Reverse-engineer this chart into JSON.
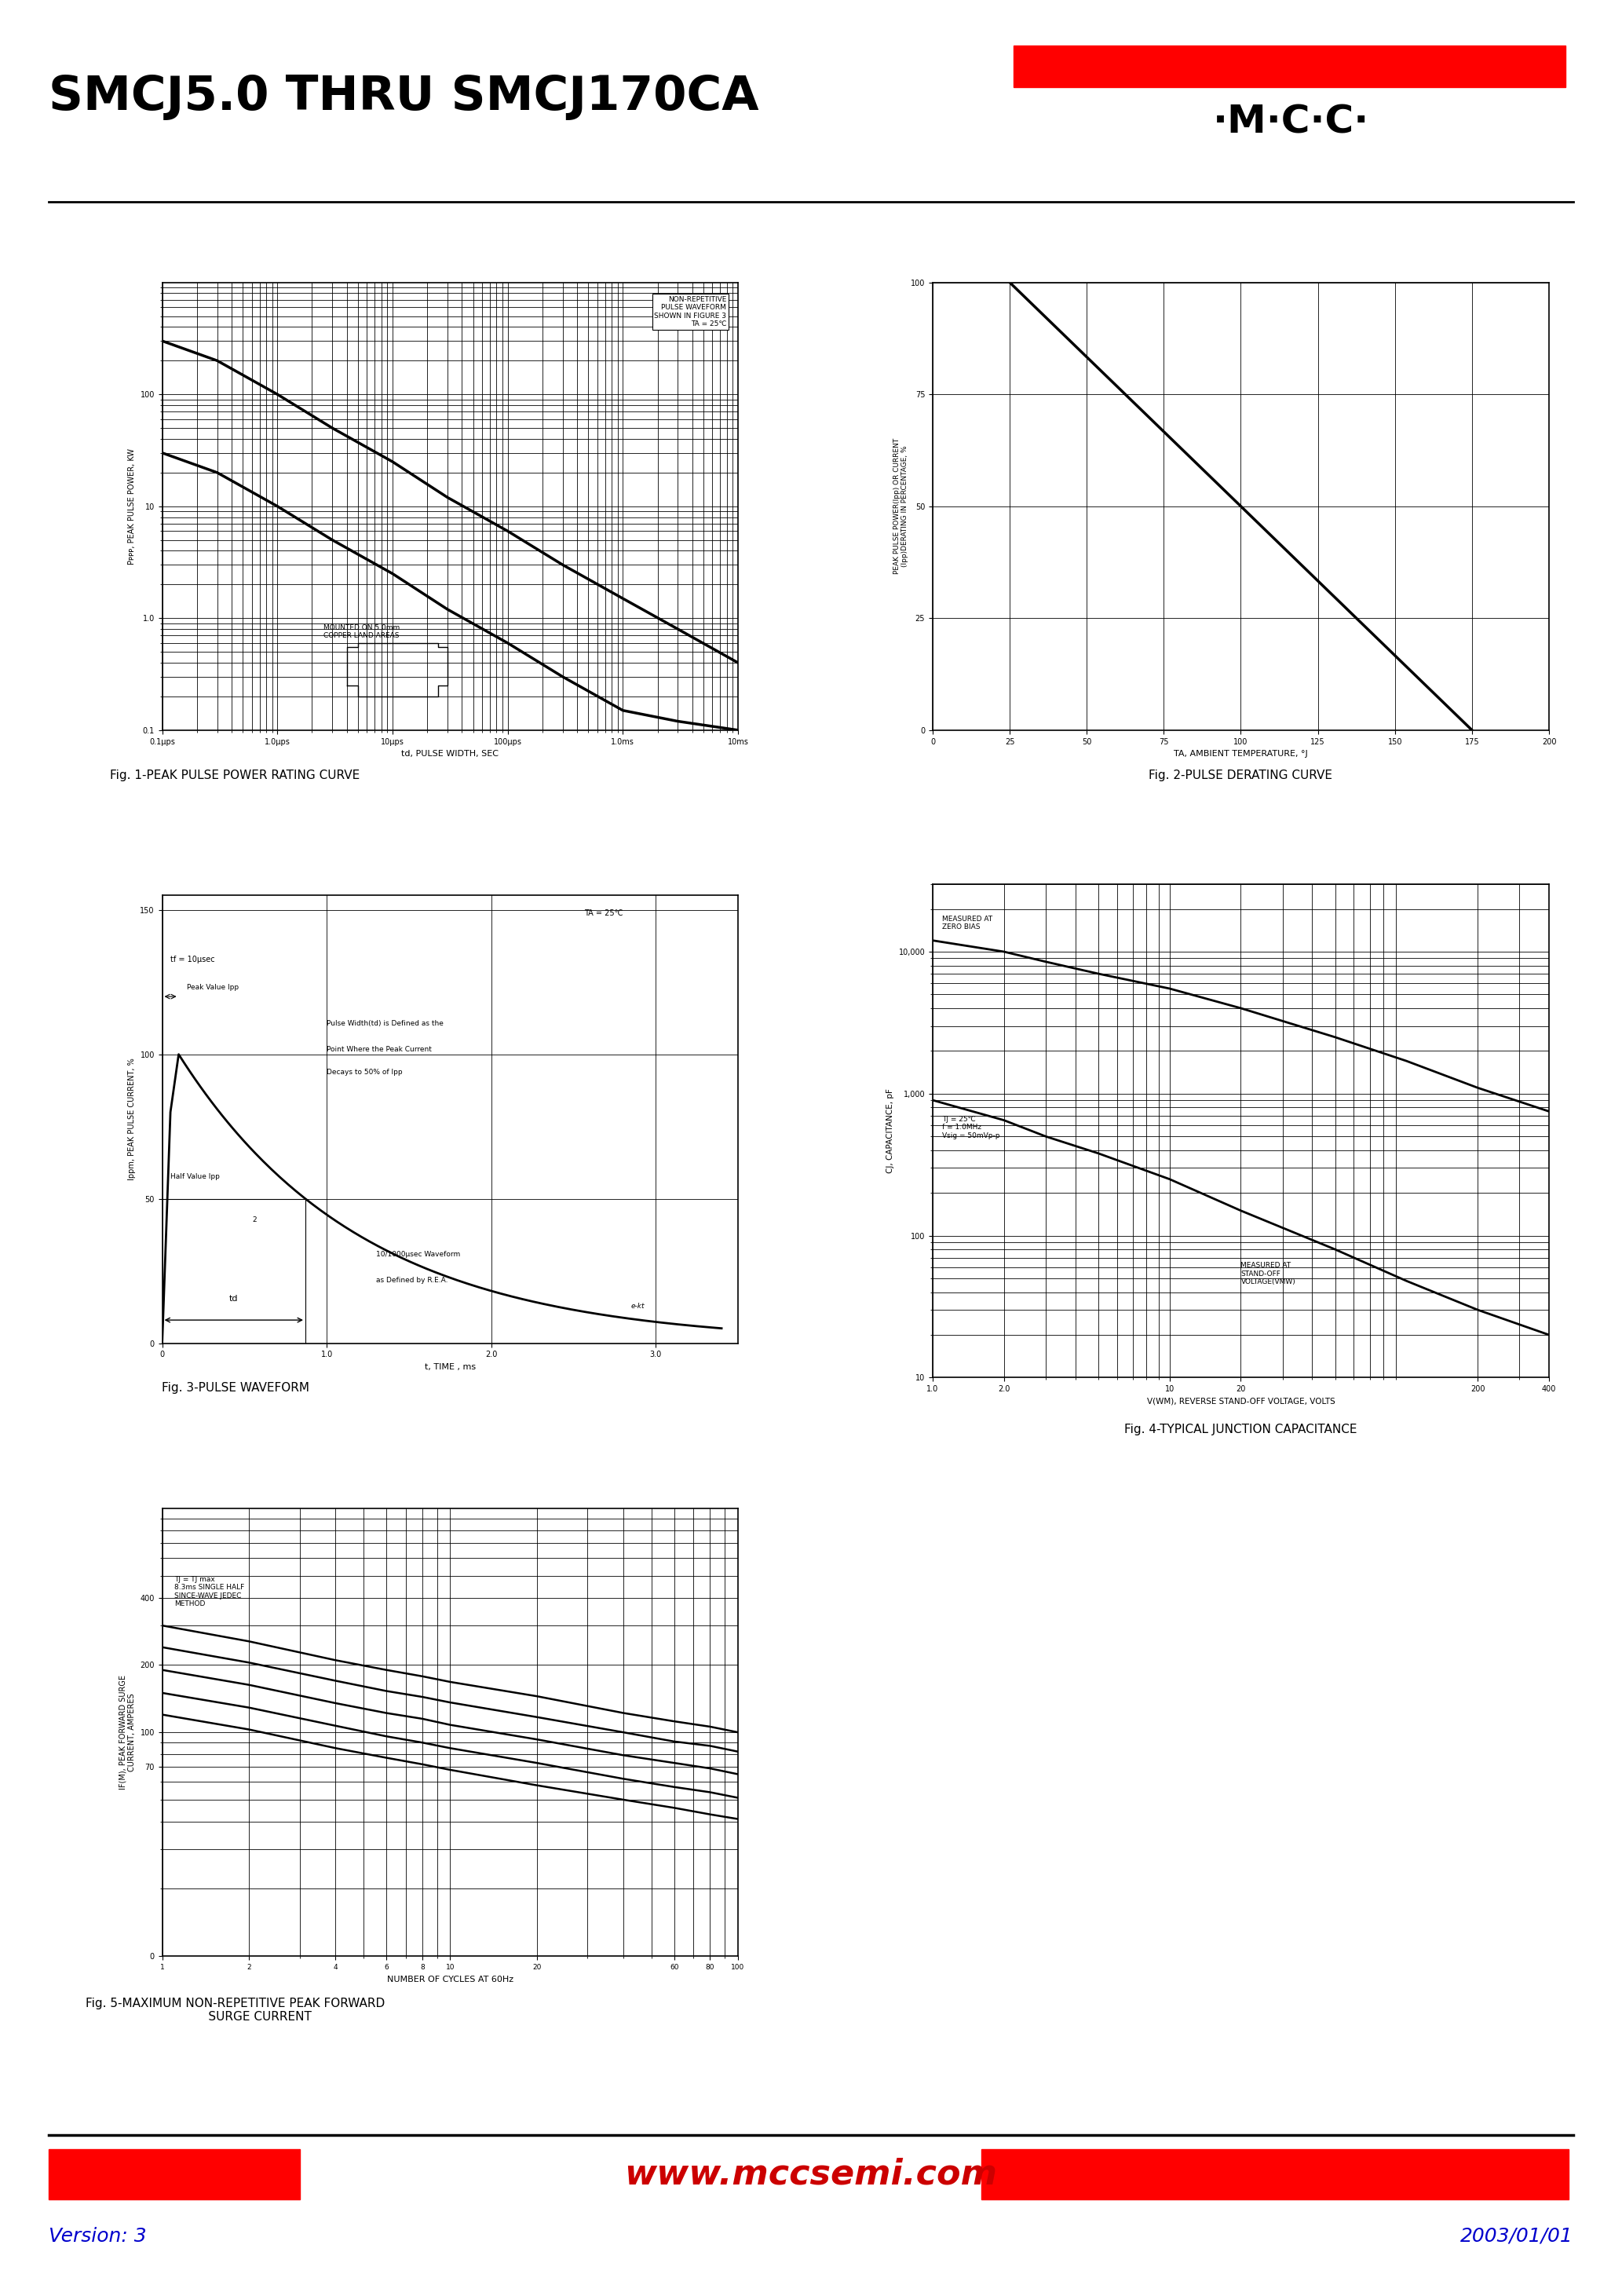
{
  "title": "SMCJ5.0 THRU SMCJ170CA",
  "bg_color": "#ffffff",
  "footer_url": "www.mccsemi.com",
  "footer_version": "Version: 3",
  "footer_date": "2003/01/01",
  "fig1_title": "Fig. 1-PEAK PULSE POWER RATING CURVE",
  "fig1_xlabel": "td, PULSE WIDTH, SEC",
  "fig1_ylabel": "Pᴘᴘᴘ, PEAK PULSE POWER, KW",
  "fig2_title": "Fig. 2-PULSE DERATING CURVE",
  "fig2_ylabel": "PEAK PULSE POWER(Ipp) OR CURRENT\n(Ipp)DERATING IN PERCENTAGE, %",
  "fig2_xlabel": "TA, AMBIENT TEMPERATURE, °J",
  "fig2_xticks": [
    0,
    25,
    50,
    75,
    100,
    125,
    150,
    175,
    200
  ],
  "fig2_yticks": [
    0,
    25,
    50,
    75,
    100
  ],
  "fig3_title": "Fig. 3-PULSE WAVEFORM",
  "fig3_ylabel": "Ippm, PEAK PULSE CURRENT, %",
  "fig3_xlabel": "t, TIME , ms",
  "fig4_title": "Fig. 4-TYPICAL JUNCTION CAPACITANCE",
  "fig4_ylabel": "CJ, CAPACITANCE, pF",
  "fig4_xlabel": "V(WM), REVERSE STAND-OFF VOLTAGE, VOLTS",
  "fig5_title": "Fig. 5-MAXIMUM NON-REPETITIVE PEAK FORWARD\n             SURGE CURRENT",
  "fig5_ylabel": "IF(M), PEAK FORWARD SURGE\nCURRENT, AMPERES",
  "fig5_xlabel": "NUMBER OF CYCLES AT 60Hz"
}
